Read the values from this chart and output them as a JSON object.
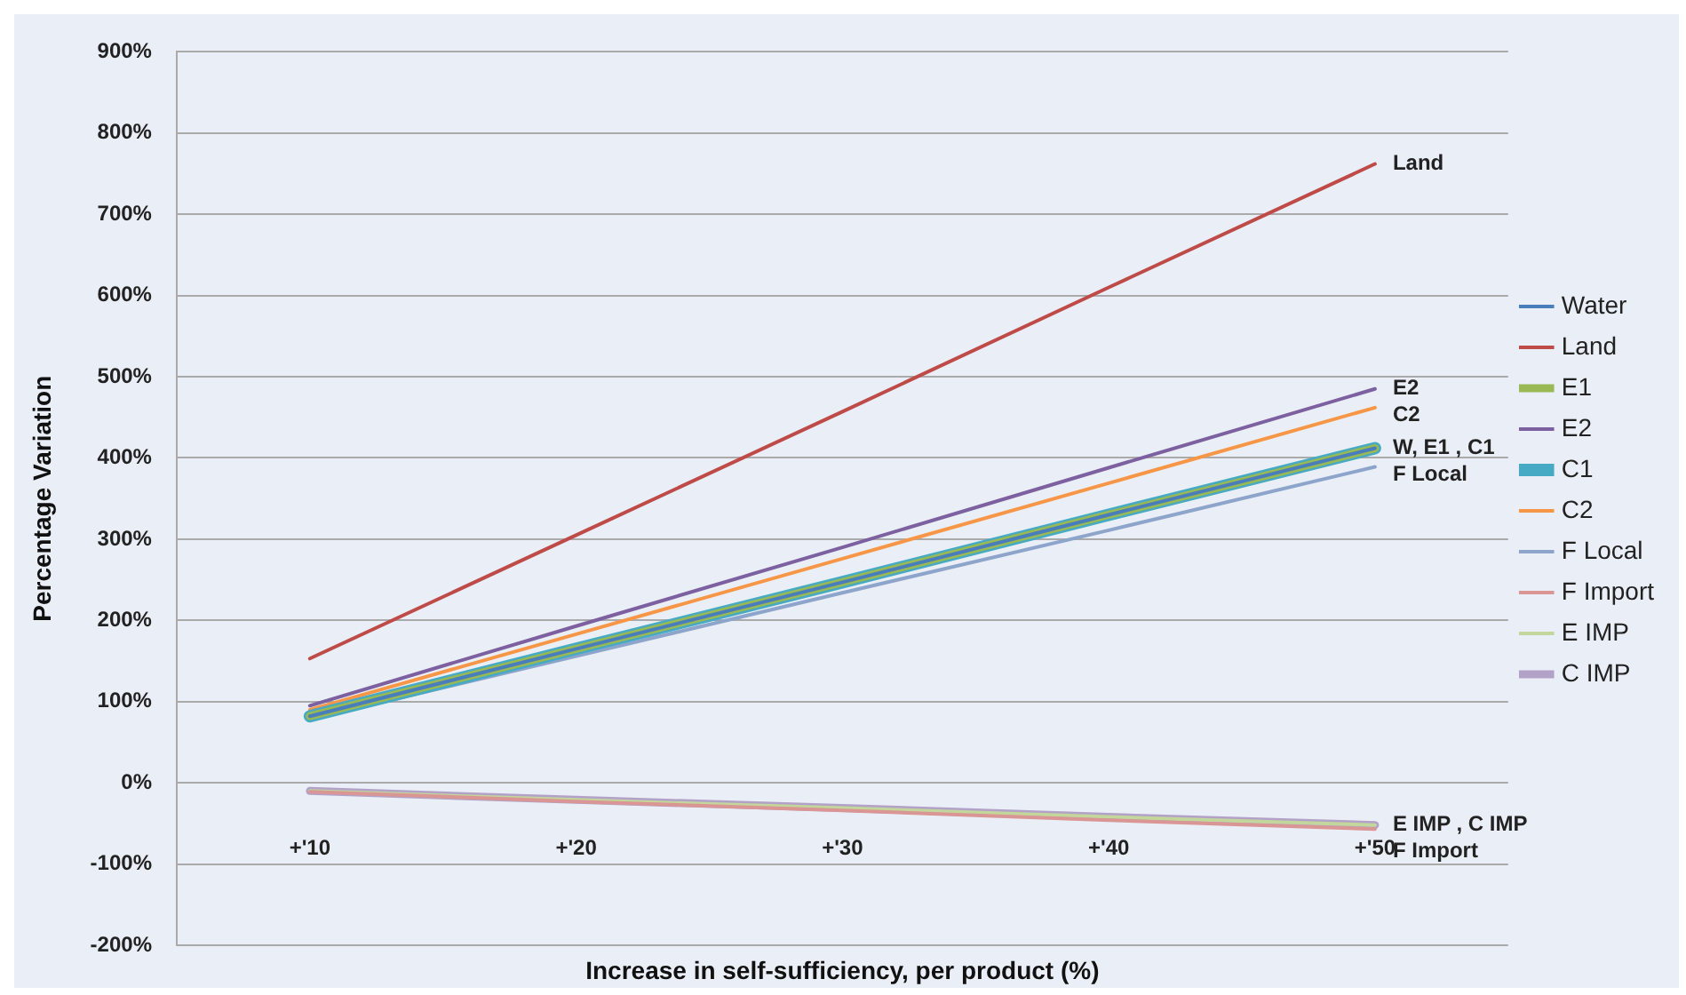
{
  "chart_data": {
    "type": "line",
    "xlabel": "Increase in self-sufficiency, per product (%)",
    "ylabel": "Percentage Variation",
    "categories": [
      "+'10",
      "+'20",
      "+'30",
      "+'40",
      "+'50"
    ],
    "ylim": [
      -200,
      900
    ],
    "yticks": [
      {
        "value": -200,
        "label": "-200%"
      },
      {
        "value": -100,
        "label": "-100%"
      },
      {
        "value": 0,
        "label": "0%"
      },
      {
        "value": 100,
        "label": "100%"
      },
      {
        "value": 200,
        "label": "200%"
      },
      {
        "value": 300,
        "label": "300%"
      },
      {
        "value": 400,
        "label": "400%"
      },
      {
        "value": 500,
        "label": "500%"
      },
      {
        "value": 600,
        "label": "600%"
      },
      {
        "value": 700,
        "label": "700%"
      },
      {
        "value": 800,
        "label": "800%"
      },
      {
        "value": 900,
        "label": "900%"
      }
    ],
    "grid": "y",
    "legend": "right",
    "marker": "none",
    "line_style": "solid",
    "series": [
      {
        "name": "Water",
        "color": "#4a7ebb",
        "values": [
          82,
          165,
          247,
          330,
          412
        ]
      },
      {
        "name": "Land",
        "color": "#be4b48",
        "values": [
          153,
          305,
          457,
          610,
          762
        ]
      },
      {
        "name": "E1",
        "color": "#98b954",
        "values": [
          82,
          165,
          247,
          330,
          412
        ]
      },
      {
        "name": "E2",
        "color": "#7d60a0",
        "values": [
          95,
          193,
          290,
          388,
          485
        ]
      },
      {
        "name": "C1",
        "color": "#46aac5",
        "values": [
          82,
          165,
          247,
          330,
          412
        ]
      },
      {
        "name": "C2",
        "color": "#f79646",
        "values": [
          90,
          183,
          276,
          369,
          462
        ]
      },
      {
        "name": "F Local",
        "color": "#8ea5cb",
        "values": [
          78,
          156,
          234,
          311,
          389
        ]
      },
      {
        "name": "F Import",
        "color": "#d99694",
        "values": [
          -11,
          -23,
          -34,
          -46,
          -57
        ]
      },
      {
        "name": "E IMP",
        "color": "#c3d69b",
        "values": [
          -10,
          -21,
          -31,
          -42,
          -52
        ]
      },
      {
        "name": "C IMP",
        "color": "#b3a2c7",
        "values": [
          -10,
          -21,
          -31,
          -42,
          -52
        ]
      }
    ],
    "annotations": [
      {
        "text": "Land",
        "x": "+'50",
        "y": 762
      },
      {
        "text": "E2",
        "x": "+'50",
        "y": 485
      },
      {
        "text": "C2",
        "x": "+'50",
        "y": 462
      },
      {
        "text": "W, E1 , C1",
        "x": "+'50",
        "y": 412
      },
      {
        "text": "F Local",
        "x": "+'50",
        "y": 389
      },
      {
        "text": "E IMP , C IMP",
        "x": "+'50",
        "y": -52
      },
      {
        "text": "F Import",
        "x": "+'50",
        "y": -57
      }
    ]
  }
}
